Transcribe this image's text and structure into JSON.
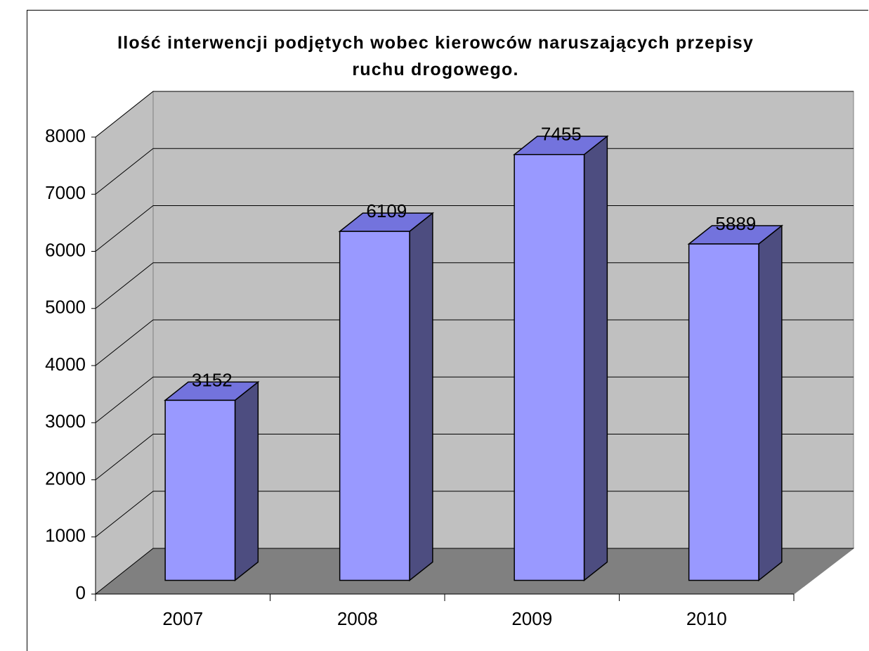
{
  "chart_data": {
    "type": "bar3d",
    "title": "Ilość interwencji podjętych wobec kierowców naruszających przepisy ruchu drogowego.",
    "categories": [
      "2007",
      "2008",
      "2009",
      "2010"
    ],
    "values": [
      3152,
      6109,
      7455,
      5889
    ],
    "color": "#9999ff",
    "ylim": [
      0,
      8000
    ],
    "yticks": [
      0,
      1000,
      2000,
      3000,
      4000,
      5000,
      6000,
      7000,
      8000
    ],
    "grid": true
  }
}
